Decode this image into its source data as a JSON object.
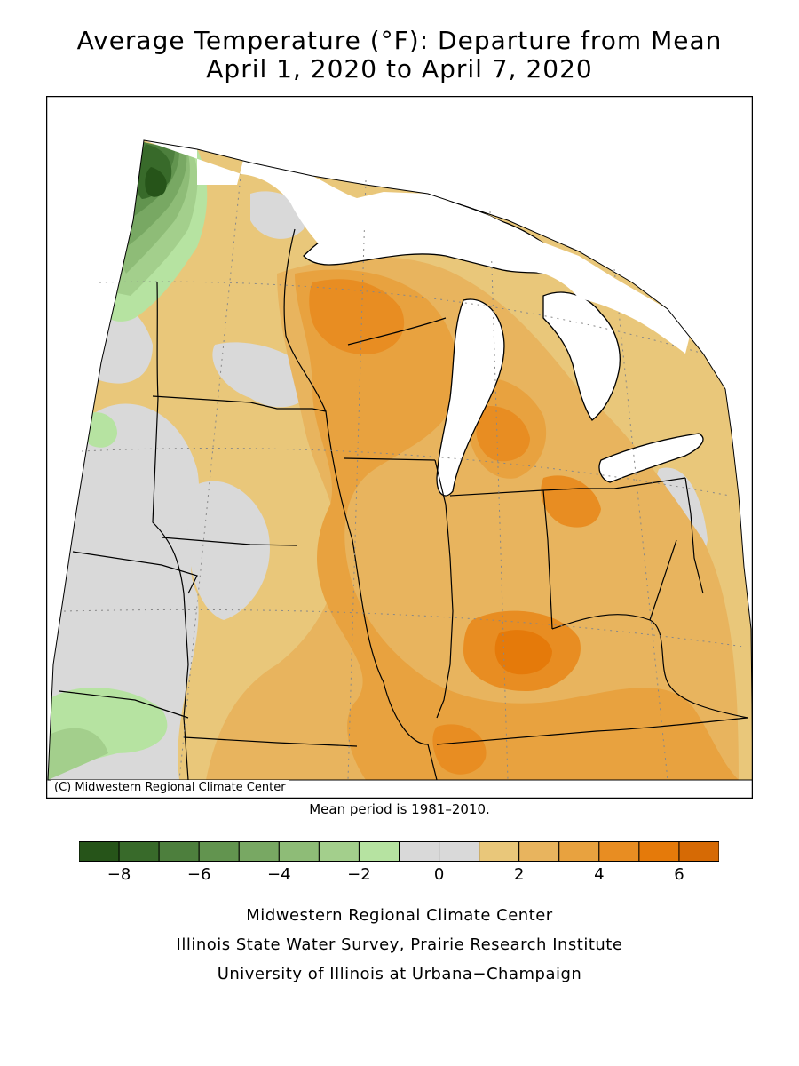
{
  "title": {
    "line1": "Average Temperature (°F): Departure from Mean",
    "line2": "April 1, 2020 to April 7, 2020"
  },
  "map": {
    "copyright": "(C) Midwestern Regional Climate Center",
    "mean_period": "Mean period is 1981–2010."
  },
  "legend": {
    "bins": [
      {
        "from": -9,
        "to": -8,
        "color": "#265419"
      },
      {
        "from": -8,
        "to": -7,
        "color": "#386a2a"
      },
      {
        "from": -7,
        "to": -6,
        "color": "#4d7f3d"
      },
      {
        "from": -6,
        "to": -5,
        "color": "#62944f"
      },
      {
        "from": -5,
        "to": -4,
        "color": "#78a863"
      },
      {
        "from": -4,
        "to": -3,
        "color": "#8ebc77"
      },
      {
        "from": -3,
        "to": -2,
        "color": "#a3cf8c"
      },
      {
        "from": -2,
        "to": -1,
        "color": "#b6e3a1"
      },
      {
        "from": -1,
        "to": 0,
        "color": "#d9d9d9"
      },
      {
        "from": 0,
        "to": 1,
        "color": "#d9d9d9"
      },
      {
        "from": 1,
        "to": 2,
        "color": "#e9c77a"
      },
      {
        "from": 2,
        "to": 3,
        "color": "#e8b45e"
      },
      {
        "from": 3,
        "to": 4,
        "color": "#e8a23f"
      },
      {
        "from": 4,
        "to": 5,
        "color": "#e88d22"
      },
      {
        "from": 5,
        "to": 6,
        "color": "#e57a0a"
      },
      {
        "from": 6,
        "to": 7,
        "color": "#d66a05"
      }
    ],
    "ticks": [
      "−8",
      "−6",
      "−4",
      "−2",
      "0",
      "2",
      "4",
      "6"
    ]
  },
  "credits": {
    "line1": "Midwestern Regional Climate Center",
    "line2": "Illinois State Water Survey, Prairie Research Institute",
    "line3": "University of Illinois at Urbana−Champaign"
  }
}
